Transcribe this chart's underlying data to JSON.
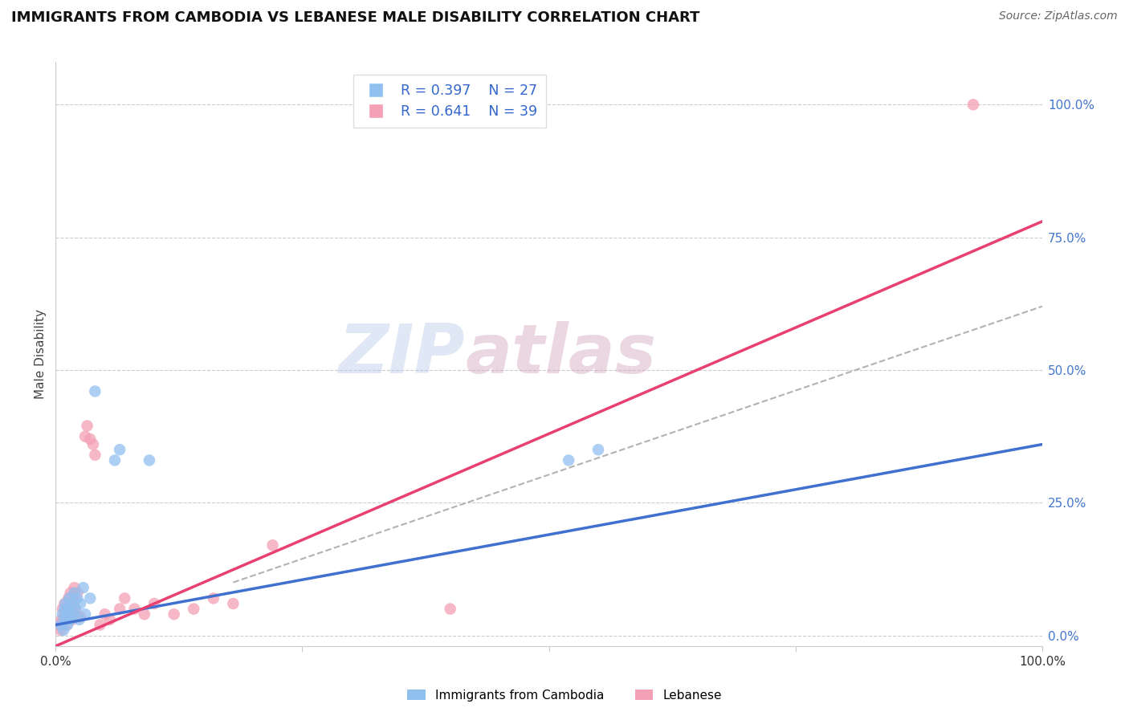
{
  "title": "IMMIGRANTS FROM CAMBODIA VS LEBANESE MALE DISABILITY CORRELATION CHART",
  "source": "Source: ZipAtlas.com",
  "ylabel": "Male Disability",
  "watermark_part1": "ZIP",
  "watermark_part2": "atlas",
  "xlim": [
    0.0,
    1.0
  ],
  "ylim": [
    -0.02,
    1.08
  ],
  "xtick_positions": [
    0.0,
    0.25,
    0.5,
    0.75,
    1.0
  ],
  "xtick_labels": [
    "0.0%",
    "",
    "",
    "",
    "100.0%"
  ],
  "ytick_positions": [
    0.0,
    0.25,
    0.5,
    0.75,
    1.0
  ],
  "ytick_labels_right": [
    "0.0%",
    "25.0%",
    "50.0%",
    "75.0%",
    "100.0%"
  ],
  "grid_color": "#cccccc",
  "background_color": "#ffffff",
  "blue_dot_color": "#90c0f0",
  "pink_dot_color": "#f4a0b5",
  "blue_line_color": "#4070d0",
  "pink_line_color": "#e84070",
  "dash_line_color": "#aaaaaa",
  "legend_label1": "Immigrants from Cambodia",
  "legend_label2": "Lebanese",
  "blue_line_x0": 0.0,
  "blue_line_y0": 0.02,
  "blue_line_x1": 1.0,
  "blue_line_y1": 0.36,
  "pink_line_x0": 0.0,
  "pink_line_y0": -0.02,
  "pink_line_x1": 1.0,
  "pink_line_y1": 0.78,
  "dash_line_x0": 0.18,
  "dash_line_y0": 0.1,
  "dash_line_x1": 1.0,
  "dash_line_y1": 0.62,
  "blue_scatter_x": [
    0.005,
    0.007,
    0.008,
    0.009,
    0.01,
    0.01,
    0.011,
    0.012,
    0.013,
    0.014,
    0.015,
    0.016,
    0.018,
    0.019,
    0.02,
    0.022,
    0.024,
    0.025,
    0.028,
    0.03,
    0.035,
    0.04,
    0.06,
    0.065,
    0.095,
    0.52,
    0.55
  ],
  "blue_scatter_y": [
    0.02,
    0.04,
    0.01,
    0.05,
    0.03,
    0.06,
    0.04,
    0.02,
    0.05,
    0.07,
    0.03,
    0.06,
    0.04,
    0.08,
    0.05,
    0.07,
    0.03,
    0.06,
    0.09,
    0.04,
    0.07,
    0.46,
    0.33,
    0.35,
    0.33,
    0.33,
    0.35
  ],
  "pink_scatter_x": [
    0.003,
    0.005,
    0.006,
    0.007,
    0.008,
    0.009,
    0.01,
    0.011,
    0.012,
    0.013,
    0.014,
    0.015,
    0.016,
    0.017,
    0.018,
    0.019,
    0.02,
    0.022,
    0.025,
    0.03,
    0.032,
    0.035,
    0.038,
    0.04,
    0.045,
    0.05,
    0.055,
    0.065,
    0.07,
    0.08,
    0.09,
    0.1,
    0.12,
    0.14,
    0.16,
    0.18,
    0.22,
    0.4,
    0.93
  ],
  "pink_scatter_y": [
    0.02,
    0.01,
    0.03,
    0.05,
    0.03,
    0.06,
    0.04,
    0.02,
    0.05,
    0.07,
    0.04,
    0.08,
    0.06,
    0.03,
    0.07,
    0.09,
    0.05,
    0.08,
    0.035,
    0.375,
    0.395,
    0.37,
    0.36,
    0.34,
    0.02,
    0.04,
    0.03,
    0.05,
    0.07,
    0.05,
    0.04,
    0.06,
    0.04,
    0.05,
    0.07,
    0.06,
    0.17,
    0.05,
    1.0
  ]
}
